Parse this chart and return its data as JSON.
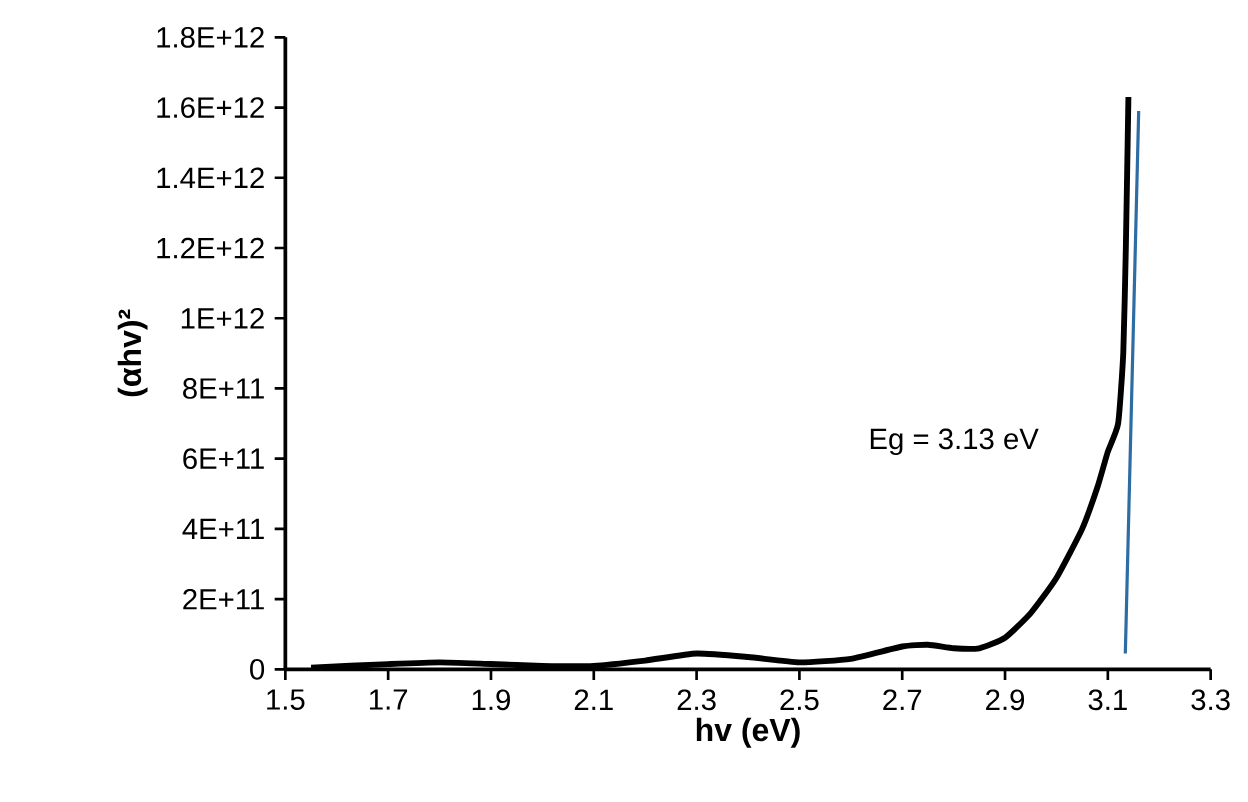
{
  "chart_data": {
    "type": "line",
    "xlabel": "hv (eV)",
    "ylabel": "(αhv)²",
    "series": [
      {
        "color": "#000000",
        "x": [
          1.55,
          1.7,
          1.8,
          1.9,
          2.0,
          2.1,
          2.2,
          2.3,
          2.4,
          2.5,
          2.6,
          2.7,
          2.75,
          2.8,
          2.85,
          2.9,
          2.95,
          3.0,
          3.05,
          3.08,
          3.1,
          3.12,
          3.13,
          3.135,
          3.14
        ],
        "values": [
          5000000000.0,
          15000000000.0,
          20000000000.0,
          15000000000.0,
          10000000000.0,
          10000000000.0,
          25000000000.0,
          45000000000.0,
          35000000000.0,
          20000000000.0,
          30000000000.0,
          65000000000.0,
          70000000000.0,
          60000000000.0,
          60000000000.0,
          90000000000.0,
          160000000000.0,
          260000000000.0,
          400000000000.0,
          520000000000.0,
          620000000000.0,
          700000000000.0,
          900000000000.0,
          1200000000000.0,
          1630000000000.0
        ]
      },
      {
        "color": "#2e6da4",
        "x": [
          3.134,
          3.16
        ],
        "values": [
          45000000000.0,
          1590000000000.0
        ]
      }
    ],
    "xlim": [
      1.5,
      3.3
    ],
    "xticks": [
      1.5,
      1.7,
      1.9,
      2.1,
      2.3,
      2.5,
      2.7,
      2.9,
      3.1,
      3.3
    ],
    "ylim": [
      0,
      1800000000000.0
    ],
    "yticks": [
      0,
      {
        "value": 200000000000.0,
        "label": "2E+11"
      },
      {
        "value": 400000000000.0,
        "label": "4E+11"
      },
      {
        "value": 600000000000.0,
        "label": "6E+11"
      },
      {
        "value": 800000000000.0,
        "label": "8E+11"
      },
      {
        "value": 1000000000000.0,
        "label": "1E+12"
      },
      {
        "value": 1200000000000.0,
        "label": "1.2E+12"
      },
      {
        "value": 1400000000000.0,
        "label": "1.4E+12"
      },
      {
        "value": 1600000000000.0,
        "label": "1.6E+12"
      },
      {
        "value": 1800000000000.0,
        "label": "1.8E+12"
      }
    ],
    "grid": false,
    "marker": "none",
    "line_style": "solid",
    "annotations": [
      "Eg = 3.13 eV"
    ]
  }
}
